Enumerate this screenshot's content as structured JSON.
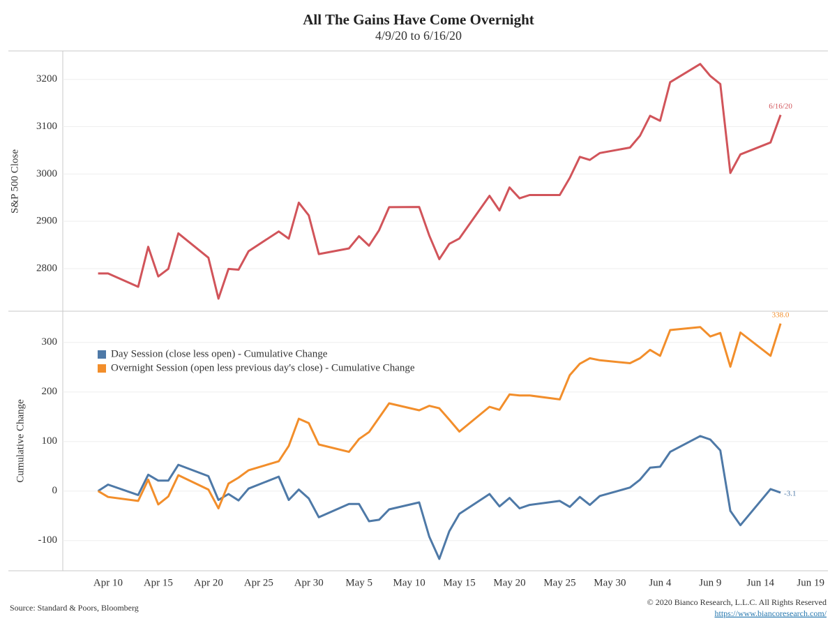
{
  "chart_data": [
    {
      "type": "line",
      "title": "All The Gains Have Come Overnight",
      "subtitle": "4/9/20 to 6/16/20",
      "ylabel": "S&P 500 Close",
      "x": [
        "04-09",
        "04-10",
        "04-13",
        "04-14",
        "04-15",
        "04-16",
        "04-17",
        "04-20",
        "04-21",
        "04-22",
        "04-23",
        "04-24",
        "04-27",
        "04-28",
        "04-29",
        "04-30",
        "05-01",
        "05-04",
        "05-05",
        "05-06",
        "05-07",
        "05-08",
        "05-11",
        "05-12",
        "05-13",
        "05-14",
        "05-15",
        "05-18",
        "05-19",
        "05-20",
        "05-21",
        "05-22",
        "05-25",
        "05-26",
        "05-27",
        "05-28",
        "05-29",
        "06-01",
        "06-02",
        "06-03",
        "06-04",
        "06-05",
        "06-08",
        "06-09",
        "06-10",
        "06-11",
        "06-12",
        "06-15",
        "06-16"
      ],
      "xlim": [
        "04-05",
        "06-21"
      ],
      "series": [
        {
          "color": "#d1545a",
          "end_label": "6/16/20",
          "values": [
            2789.82,
            2789.82,
            2761.63,
            2846.06,
            2783.36,
            2799.55,
            2874.56,
            2823.16,
            2736.56,
            2799.31,
            2797.8,
            2836.74,
            2878.48,
            2863.39,
            2939.51,
            2912.43,
            2830.71,
            2842.74,
            2868.44,
            2848.42,
            2881.19,
            2929.8,
            2930.32,
            2870.12,
            2820,
            2852.5,
            2863.7,
            2953.91,
            2922.94,
            2971.61,
            2948.51,
            2955.45,
            2955.45,
            2991.77,
            3036.13,
            3029.73,
            3044.31,
            3055.73,
            3080.82,
            3122.87,
            3112.35,
            3193.93,
            3232.39,
            3207.18,
            3190.14,
            3002.1,
            3041.31,
            3066.59,
            3124.74
          ]
        }
      ],
      "ylim": [
        2710,
        3260
      ],
      "yticks": [
        2800,
        2900,
        3000,
        3100,
        3200
      ],
      "grid": true
    },
    {
      "type": "line",
      "ylabel": "Cumulative Change",
      "x": [
        "04-09",
        "04-10",
        "04-13",
        "04-14",
        "04-15",
        "04-16",
        "04-17",
        "04-20",
        "04-21",
        "04-22",
        "04-23",
        "04-24",
        "04-27",
        "04-28",
        "04-29",
        "04-30",
        "05-01",
        "05-04",
        "05-05",
        "05-06",
        "05-07",
        "05-08",
        "05-11",
        "05-12",
        "05-13",
        "05-14",
        "05-15",
        "05-18",
        "05-19",
        "05-20",
        "05-21",
        "05-22",
        "05-25",
        "05-26",
        "05-27",
        "05-28",
        "05-29",
        "06-01",
        "06-02",
        "06-03",
        "06-04",
        "06-05",
        "06-08",
        "06-09",
        "06-10",
        "06-11",
        "06-12",
        "06-15",
        "06-16"
      ],
      "xlim": [
        "04-05",
        "06-21"
      ],
      "xticks": [
        {
          "value": "04-10",
          "label": "Apr 10"
        },
        {
          "value": "04-15",
          "label": "Apr 15"
        },
        {
          "value": "04-20",
          "label": "Apr 20"
        },
        {
          "value": "04-25",
          "label": "Apr 25"
        },
        {
          "value": "04-30",
          "label": "Apr 30"
        },
        {
          "value": "05-05",
          "label": "May 5"
        },
        {
          "value": "05-10",
          "label": "May 10"
        },
        {
          "value": "05-15",
          "label": "May 15"
        },
        {
          "value": "05-20",
          "label": "May 20"
        },
        {
          "value": "05-25",
          "label": "May 25"
        },
        {
          "value": "05-30",
          "label": "May 30"
        },
        {
          "value": "06-04",
          "label": "Jun 4"
        },
        {
          "value": "06-09",
          "label": "Jun 9"
        },
        {
          "value": "06-14",
          "label": "Jun 14"
        },
        {
          "value": "06-19",
          "label": "Jun 19"
        }
      ],
      "series": [
        {
          "name": "Day Session (close less open) - Cumulative Change",
          "color": "#4e79a7",
          "end_label": "-3.1",
          "values": [
            0,
            13,
            -8,
            33,
            21,
            21,
            53,
            30,
            -18,
            -6,
            -19,
            5,
            29,
            -18,
            3,
            -15,
            -53,
            -26,
            -26,
            -61,
            -58,
            -37,
            -23,
            -92,
            -137,
            -81,
            -46,
            -6,
            -31,
            -14,
            -35,
            -28,
            -20,
            -32,
            -12,
            -28,
            -10,
            7,
            23,
            47,
            49,
            79,
            111,
            104,
            82,
            -40,
            -69,
            4,
            -3.1
          ]
        },
        {
          "name": "Overnight Session (open less previous day's close) - Cumulative Change",
          "color": "#f28e2b",
          "end_label": "338.0",
          "values": [
            0,
            -12,
            -20,
            23,
            -27,
            -11,
            32,
            3,
            -35,
            15,
            27,
            42,
            60,
            91,
            146,
            137,
            94,
            79,
            105,
            119,
            148,
            177,
            163,
            172,
            167,
            144,
            120,
            170,
            164,
            195,
            193,
            193,
            185,
            234,
            257,
            268,
            264,
            258,
            268,
            285,
            273,
            325,
            331,
            312,
            319,
            251,
            320,
            273,
            338
          ]
        }
      ],
      "ylim": [
        -161,
        363
      ],
      "yticks": [
        -100,
        0,
        100,
        200,
        300
      ],
      "grid": true,
      "legend": "upper left"
    }
  ],
  "footer": {
    "source": "Source: Standard & Poors, Bloomberg",
    "copyright": "© 2020 Bianco Research, L.L.C. All Rights Reserved",
    "url": "https://www.biancoresearch.com/"
  }
}
